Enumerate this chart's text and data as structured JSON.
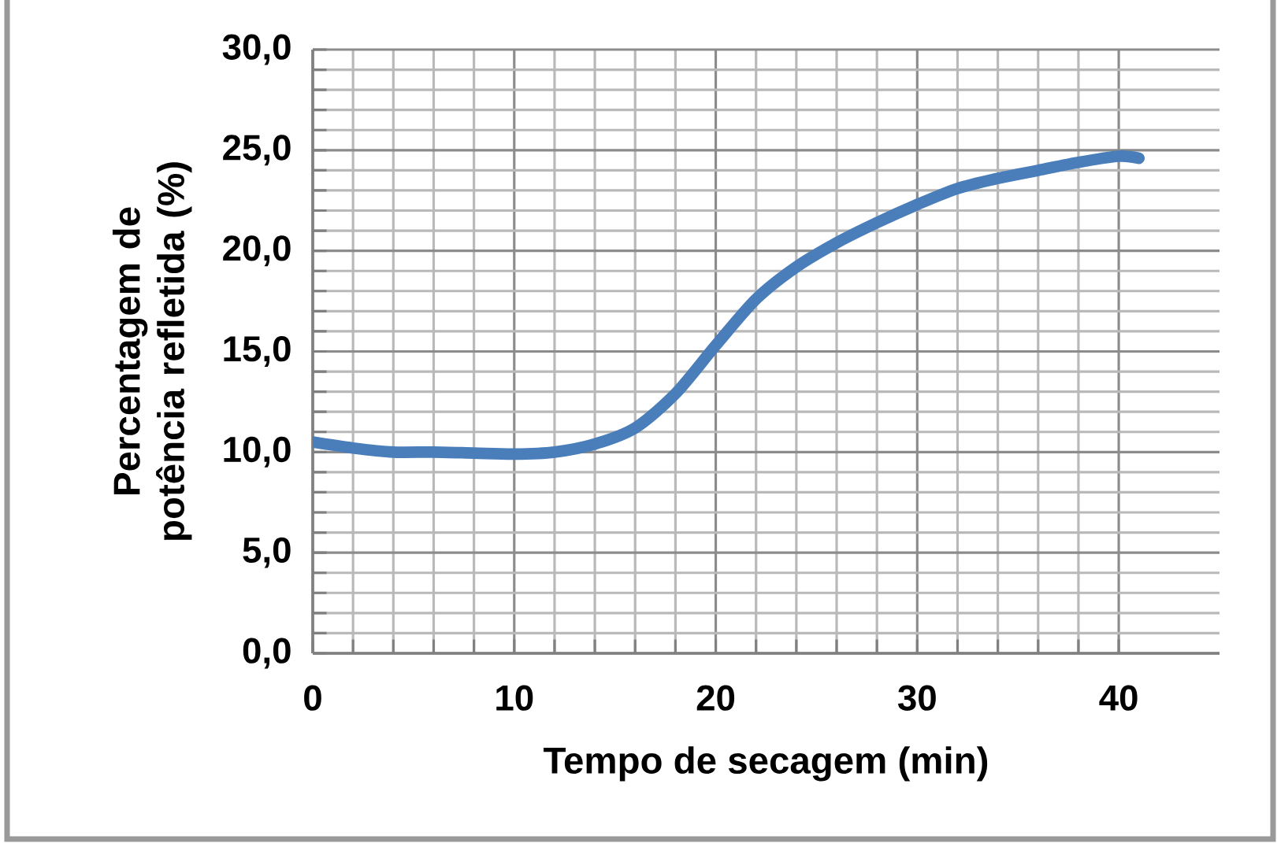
{
  "chart_data": {
    "type": "line",
    "xlabel": "Tempo de secagem (min)",
    "ylabel": "Percentagem de potência refletida (%)",
    "x": [
      0,
      2,
      4,
      6,
      8,
      10,
      12,
      14,
      16,
      18,
      20,
      22,
      24,
      26,
      28,
      30,
      32,
      34,
      36,
      38,
      40,
      41
    ],
    "series": [
      {
        "color": "#4a7ebb",
        "values": [
          10.5,
          10.2,
          10.0,
          10.0,
          9.95,
          9.9,
          10.0,
          10.4,
          11.2,
          12.9,
          15.3,
          17.6,
          19.2,
          20.4,
          21.4,
          22.3,
          23.1,
          23.6,
          24.0,
          24.4,
          24.7,
          24.6
        ]
      }
    ],
    "xlim": [
      0,
      45
    ],
    "xticks": [
      0,
      10,
      20,
      30,
      40
    ],
    "ylim": [
      0,
      30
    ],
    "yticks": [
      {
        "value": 0,
        "label": "0,0"
      },
      {
        "value": 5,
        "label": "5,0"
      },
      {
        "value": 10,
        "label": "10,0"
      },
      {
        "value": 15,
        "label": "15,0"
      },
      {
        "value": 20,
        "label": "20,0"
      },
      {
        "value": 25,
        "label": "25,0"
      },
      {
        "value": 30,
        "label": "30,0"
      }
    ],
    "grid": true,
    "marker": "none",
    "line_style": "solid"
  }
}
